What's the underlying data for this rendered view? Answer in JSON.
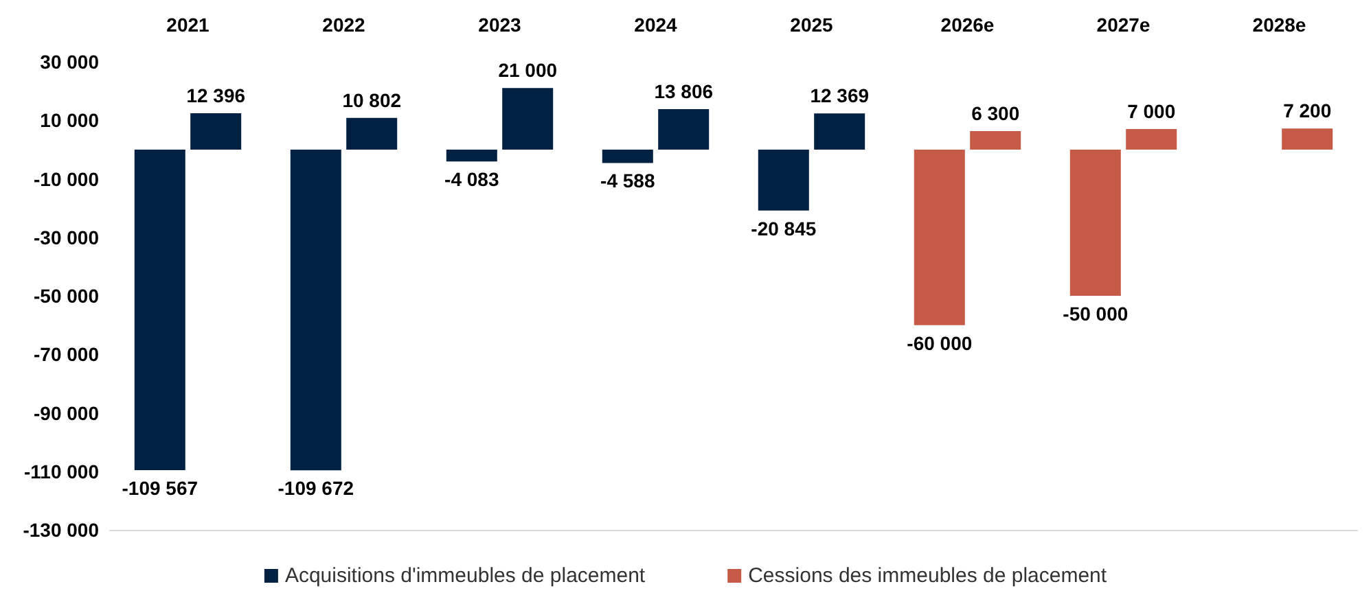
{
  "chart_data": {
    "type": "bar",
    "categories": [
      "2021",
      "2022",
      "2023",
      "2024",
      "2025",
      "2026e",
      "2027e",
      "2028e"
    ],
    "series": [
      {
        "name": "Acquisitions d'immeubles de placement",
        "color": "#002142",
        "colors": [
          "#002142",
          "#002142",
          "#002142",
          "#002142",
          "#002142",
          "#c55a47",
          "#c55a47",
          "#c55a47"
        ],
        "values": [
          -109567,
          -109672,
          -4083,
          -4588,
          -20845,
          -60000,
          -50000,
          null
        ],
        "value_labels": [
          "-109 567",
          "-109 672",
          "-4 083",
          "-4 588",
          "-20 845",
          "-60 000",
          "-50 000",
          null
        ]
      },
      {
        "name": "Cessions des immeubles de placement",
        "color": "#c55a47",
        "colors": [
          "#002142",
          "#002142",
          "#002142",
          "#002142",
          "#002142",
          "#c55a47",
          "#c55a47",
          "#c55a47"
        ],
        "values": [
          12396,
          10802,
          21000,
          13806,
          12369,
          6300,
          7000,
          7200
        ],
        "value_labels": [
          "12 396",
          "10 802",
          "21 000",
          "13 806",
          "12 369",
          "6 300",
          "7 000",
          "7 200"
        ]
      }
    ],
    "ylim": [
      -130000,
      30000
    ],
    "yticks": [
      {
        "value": 30000,
        "label": "30 000"
      },
      {
        "value": 10000,
        "label": "10 000"
      },
      {
        "value": -10000,
        "label": "-10 000"
      },
      {
        "value": -30000,
        "label": "-30 000"
      },
      {
        "value": -50000,
        "label": "-50 000"
      },
      {
        "value": -70000,
        "label": "-70 000"
      },
      {
        "value": -90000,
        "label": "-90 000"
      },
      {
        "value": -110000,
        "label": "-110 000"
      },
      {
        "value": -130000,
        "label": "-130 000"
      }
    ],
    "grid": false,
    "legend": "bottom"
  }
}
